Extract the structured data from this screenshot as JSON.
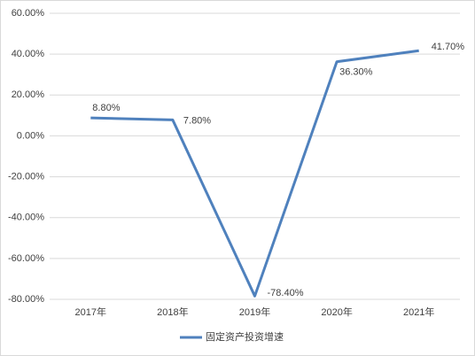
{
  "chart_data": {
    "type": "line",
    "categories": [
      "2017年",
      "2018年",
      "2019年",
      "2020年",
      "2021年"
    ],
    "series": [
      {
        "name": "固定资产投资增速",
        "color": "#4f81bd",
        "values": [
          8.8,
          7.8,
          -78.4,
          36.3,
          41.7
        ],
        "value_labels": [
          "8.80%",
          "7.80%",
          "-78.40%",
          "36.30%",
          "41.70%"
        ]
      }
    ],
    "ylim": [
      -80,
      60
    ],
    "yticks": [
      {
        "value": -80,
        "label": "-80.00%"
      },
      {
        "value": -60,
        "label": "-60.00%"
      },
      {
        "value": -40,
        "label": "-40.00%"
      },
      {
        "value": -20,
        "label": "-20.00%"
      },
      {
        "value": 0,
        "label": "0.00%"
      },
      {
        "value": 20,
        "label": "20.00%"
      },
      {
        "value": 40,
        "label": "40.00%"
      },
      {
        "value": 60,
        "label": "60.00%"
      }
    ],
    "grid": true,
    "legend": "bottom"
  }
}
